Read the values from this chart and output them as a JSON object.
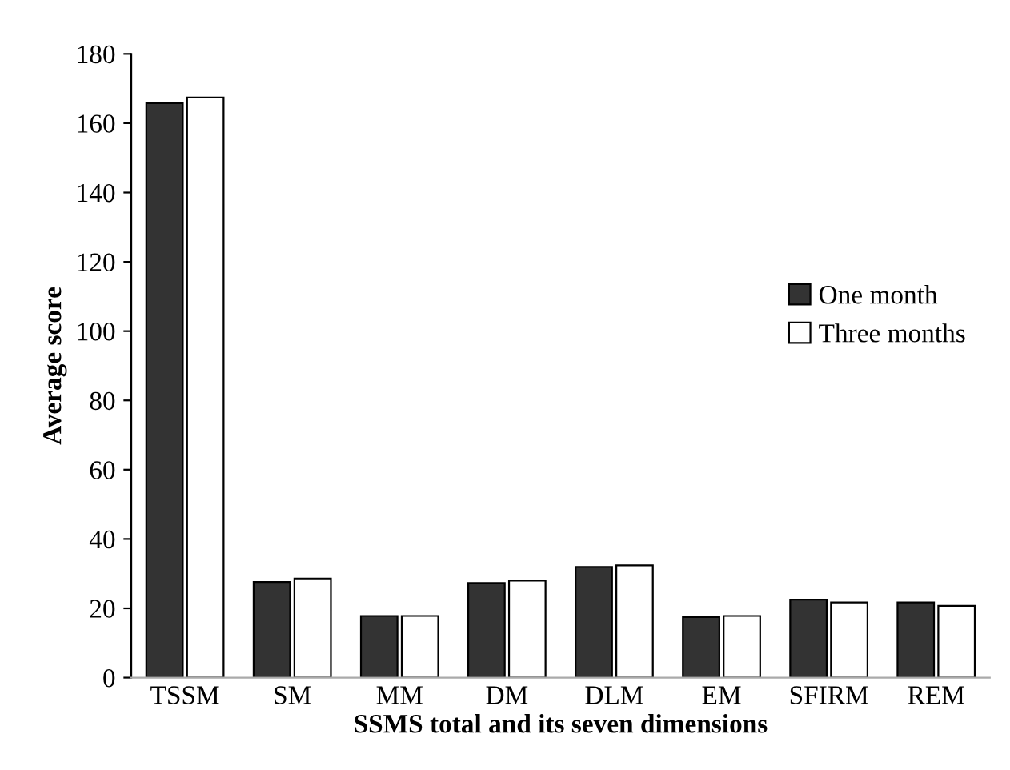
{
  "chart_data": {
    "type": "bar",
    "xlabel": "SSMS total and its seven dimensions",
    "ylabel": "Average score",
    "categories": [
      "TSSM",
      "SM",
      "MM",
      "DM",
      "DLM",
      "EM",
      "SFIRM",
      "REM"
    ],
    "series": [
      {
        "name": "One month",
        "color": "#333333",
        "values": [
          165.8,
          27.6,
          17.8,
          27.3,
          31.9,
          17.5,
          22.5,
          21.7
        ]
      },
      {
        "name": "Three months",
        "color": "#ffffff",
        "values": [
          167.4,
          28.6,
          17.8,
          28.0,
          32.4,
          17.8,
          21.7,
          20.7
        ]
      }
    ],
    "ylim": [
      0,
      180
    ],
    "yticks": [
      0,
      20,
      40,
      60,
      80,
      100,
      120,
      140,
      160,
      180
    ],
    "grid": false,
    "legend": "right"
  }
}
